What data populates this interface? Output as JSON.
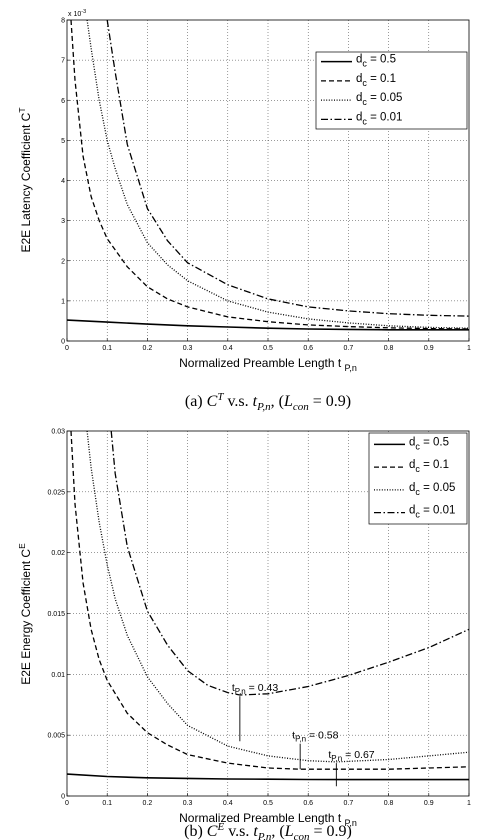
{
  "chart_data": [
    {
      "type": "line",
      "title": "",
      "caption": {
        "prefix": "(a) ",
        "sym": "C",
        "sup": "T",
        "vs": " v.s. ",
        "t": "t",
        "tsub": "P,n",
        "comma": ", (",
        "L": "L",
        "Lsub": "con",
        "eq": " = 0.9)"
      },
      "xlabel": {
        "text": "Normalized Preamble Length t ",
        "sub": "P,n"
      },
      "ylabel": {
        "text": "E2E Latency Coefficient C",
        "sup": "T"
      },
      "y_multiplier": "x 10",
      "y_multiplier_exp": "-3",
      "xlim": [
        0,
        1
      ],
      "ylim": [
        0,
        8
      ],
      "xticks": [
        "0",
        "0.1",
        "0.2",
        "0.3",
        "0.4",
        "0.5",
        "0.6",
        "0.7",
        "0.8",
        "0.9",
        "1"
      ],
      "yticks": [
        "0",
        "1",
        "2",
        "3",
        "4",
        "5",
        "6",
        "7",
        "8"
      ],
      "grid": true,
      "legend_position": "top-right",
      "series": [
        {
          "name": "d",
          "name_sub": "c",
          "name_tail": " = 0.5",
          "style": "solid",
          "x": [
            0,
            0.1,
            0.2,
            0.3,
            0.4,
            0.5,
            0.6,
            0.7,
            0.8,
            0.9,
            1.0
          ],
          "y": [
            0.52,
            0.47,
            0.42,
            0.38,
            0.35,
            0.32,
            0.3,
            0.29,
            0.28,
            0.28,
            0.28
          ]
        },
        {
          "name": "d",
          "name_sub": "c",
          "name_tail": " = 0.1",
          "style": "dashed",
          "x": [
            0.01,
            0.02,
            0.04,
            0.06,
            0.08,
            0.1,
            0.15,
            0.2,
            0.25,
            0.3,
            0.4,
            0.5,
            0.6,
            0.7,
            0.8,
            0.9,
            1.0
          ],
          "y": [
            8.0,
            6.5,
            4.6,
            3.6,
            3.0,
            2.55,
            1.85,
            1.35,
            1.05,
            0.85,
            0.6,
            0.48,
            0.4,
            0.36,
            0.33,
            0.31,
            0.3
          ]
        },
        {
          "name": "d",
          "name_sub": "c",
          "name_tail": " = 0.05",
          "style": "dotted",
          "x": [
            0.05,
            0.06,
            0.08,
            0.1,
            0.12,
            0.15,
            0.2,
            0.25,
            0.3,
            0.4,
            0.5,
            0.6,
            0.7,
            0.8,
            0.9,
            1.0
          ],
          "y": [
            8.0,
            7.3,
            6.0,
            5.0,
            4.3,
            3.4,
            2.45,
            1.9,
            1.5,
            1.0,
            0.72,
            0.55,
            0.45,
            0.38,
            0.34,
            0.32
          ]
        },
        {
          "name": "d",
          "name_sub": "c",
          "name_tail": " = 0.01",
          "style": "dashdot",
          "x": [
            0.1,
            0.12,
            0.15,
            0.2,
            0.25,
            0.3,
            0.4,
            0.5,
            0.6,
            0.7,
            0.8,
            0.9,
            1.0
          ],
          "y": [
            8.0,
            6.7,
            4.9,
            3.3,
            2.5,
            1.95,
            1.4,
            1.05,
            0.85,
            0.75,
            0.68,
            0.64,
            0.62
          ]
        }
      ]
    },
    {
      "type": "line",
      "title": "",
      "caption": {
        "prefix": "(b) ",
        "sym": "C",
        "sup": "E",
        "vs": " v.s. ",
        "t": "t",
        "tsub": "P,n",
        "comma": ", (",
        "L": "L",
        "Lsub": "con",
        "eq": " = 0.9)"
      },
      "xlabel": {
        "text": "Normalized Preamble Length t ",
        "sub": "P,n"
      },
      "ylabel": {
        "text": "E2E Energy Coefficient C",
        "sup": "E"
      },
      "xlim": [
        0,
        1
      ],
      "ylim": [
        0,
        0.03
      ],
      "xticks": [
        "0",
        "0.1",
        "0.2",
        "0.3",
        "0.4",
        "0.5",
        "0.6",
        "0.7",
        "0.8",
        "0.9",
        "1"
      ],
      "yticks": [
        "0",
        "0.005",
        "0.01",
        "0.015",
        "0.02",
        "0.025",
        "0.03"
      ],
      "grid": true,
      "legend_position": "top-right",
      "series": [
        {
          "name": "d",
          "name_sub": "c",
          "name_tail": " = 0.5",
          "style": "solid",
          "x": [
            0,
            0.1,
            0.2,
            0.3,
            0.4,
            0.5,
            0.6,
            0.7,
            0.8,
            0.9,
            1.0
          ],
          "y": [
            0.0018,
            0.0016,
            0.0015,
            0.00145,
            0.0014,
            0.00138,
            0.00136,
            0.00135,
            0.00135,
            0.00135,
            0.00135
          ]
        },
        {
          "name": "d",
          "name_sub": "c",
          "name_tail": " = 0.1",
          "style": "dashed",
          "x": [
            0.01,
            0.02,
            0.04,
            0.06,
            0.08,
            0.1,
            0.15,
            0.2,
            0.25,
            0.3,
            0.4,
            0.5,
            0.58,
            0.7,
            0.8,
            0.9,
            1.0
          ],
          "y": [
            0.03,
            0.024,
            0.0175,
            0.0137,
            0.0112,
            0.0095,
            0.0068,
            0.0052,
            0.0042,
            0.0034,
            0.0027,
            0.0023,
            0.0022,
            0.0022,
            0.0022,
            0.0023,
            0.0024
          ]
        },
        {
          "name": "d",
          "name_sub": "c",
          "name_tail": " = 0.05",
          "style": "dotted",
          "x": [
            0.05,
            0.06,
            0.08,
            0.1,
            0.12,
            0.15,
            0.2,
            0.25,
            0.3,
            0.4,
            0.5,
            0.6,
            0.67,
            0.8,
            0.9,
            1.0
          ],
          "y": [
            0.03,
            0.027,
            0.0225,
            0.019,
            0.0162,
            0.0132,
            0.0098,
            0.0076,
            0.0058,
            0.0041,
            0.0033,
            0.0029,
            0.0028,
            0.003,
            0.0033,
            0.0036
          ]
        },
        {
          "name": "d",
          "name_sub": "c",
          "name_tail": " = 0.01",
          "style": "dashdot",
          "x": [
            0.11,
            0.12,
            0.15,
            0.2,
            0.25,
            0.3,
            0.35,
            0.4,
            0.43,
            0.5,
            0.6,
            0.7,
            0.8,
            0.9,
            1.0
          ],
          "y": [
            0.03,
            0.0265,
            0.0205,
            0.0152,
            0.0124,
            0.0103,
            0.0091,
            0.0085,
            0.0083,
            0.0084,
            0.009,
            0.0099,
            0.011,
            0.0122,
            0.0137
          ]
        }
      ],
      "annotations": [
        {
          "t": "t",
          "sub": "P,n",
          "tail": " = 0.43",
          "x": 0.43,
          "y_top": 0.0082,
          "y_bot": 0.0045
        },
        {
          "t": "t",
          "sub": "P,n",
          "tail": " = 0.58",
          "x": 0.58,
          "y_top": 0.0043,
          "y_bot": 0.0022
        },
        {
          "t": "t",
          "sub": "P,n",
          "tail": " = 0.67",
          "x": 0.67,
          "y_top": 0.0027,
          "y_bot": 0.0008
        }
      ]
    }
  ]
}
